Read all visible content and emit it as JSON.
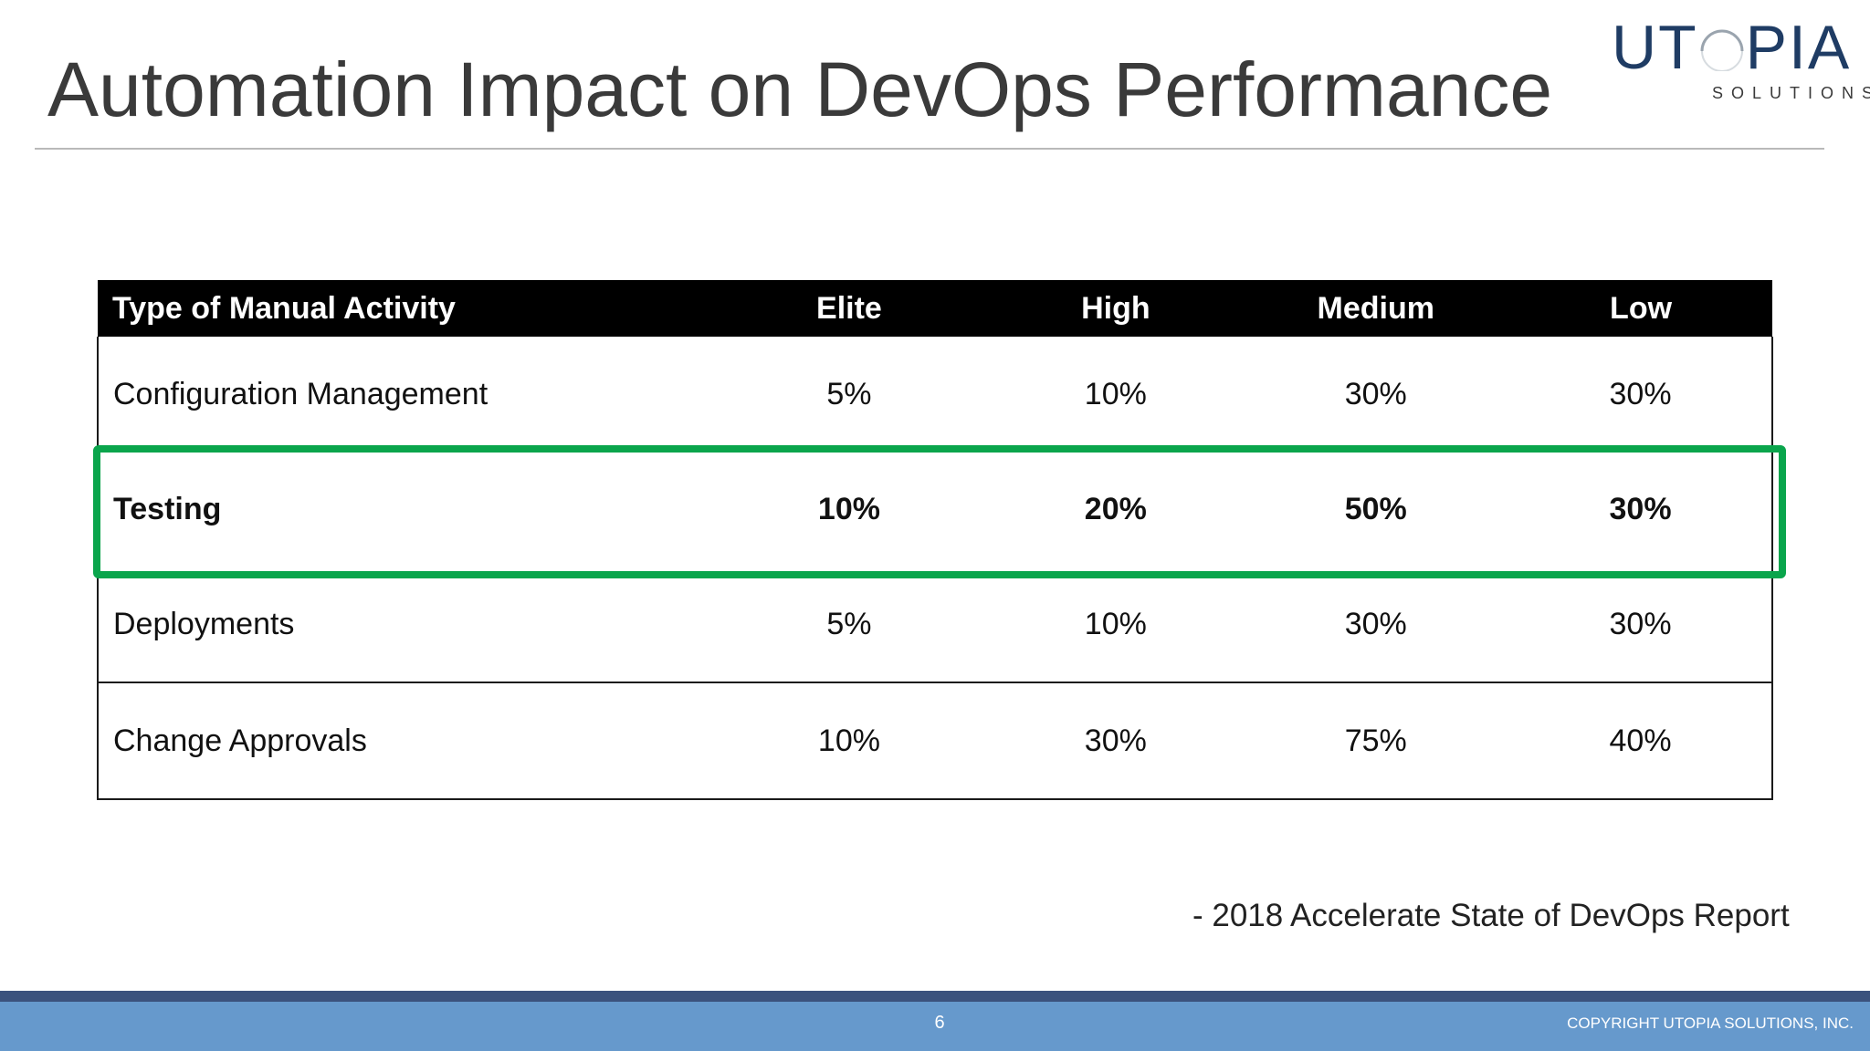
{
  "slide": {
    "title": "Automation Impact on DevOps Performance",
    "logo": {
      "word_left": "UT",
      "word_right": "PIA",
      "sub": "SOLUTIONS"
    },
    "citation": "- 2018 Accelerate State of DevOps Report",
    "page_number": "6",
    "copyright": "COPYRIGHT UTOPIA SOLUTIONS, INC.",
    "highlight_row": "Testing",
    "colors": {
      "header_bg": "#000000",
      "highlight": "#0aa54c",
      "footer_dark": "#3b527d",
      "footer": "#6699cc",
      "logo": "#1f3c64"
    }
  },
  "table": {
    "headers": [
      "Type of Manual Activity",
      "Elite",
      "High",
      "Medium",
      "Low"
    ],
    "rows": [
      [
        "Configuration Management",
        "5%",
        "10%",
        "30%",
        "30%"
      ],
      [
        "Testing",
        "10%",
        "20%",
        "50%",
        "30%"
      ],
      [
        "Deployments",
        "5%",
        "10%",
        "30%",
        "30%"
      ],
      [
        "Change Approvals",
        "10%",
        "30%",
        "75%",
        "40%"
      ]
    ]
  }
}
